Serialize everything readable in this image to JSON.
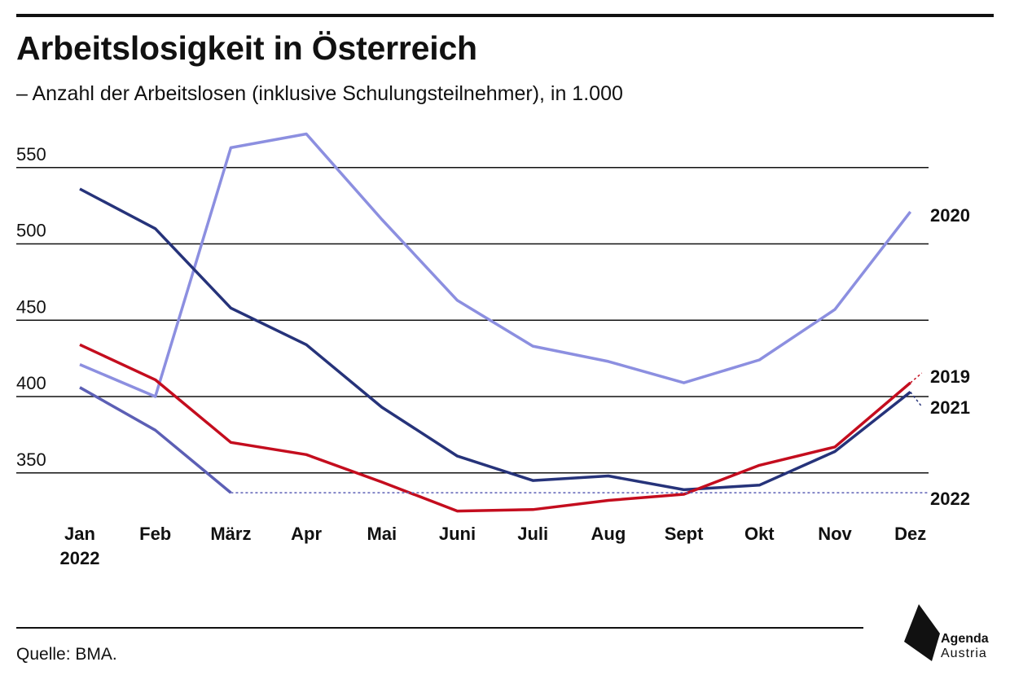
{
  "header": {
    "title": "Arbeitslosigkeit in Österreich",
    "subtitle": "– Anzahl der Arbeitslosen (inklusive Schulungsteilnehmer), in 1.000"
  },
  "footer": {
    "source": "Quelle: BMA.",
    "logo_line1": "Agenda",
    "logo_line2": "Austria"
  },
  "colors": {
    "2019": "#c40d1e",
    "2020": "#8c8fe0",
    "2021": "#26337a",
    "2022": "#5c5fb5"
  },
  "chart_data": {
    "type": "line",
    "categories": [
      "Jan",
      "Feb",
      "März",
      "Apr",
      "Mai",
      "Juni",
      "Juli",
      "Aug",
      "Sept",
      "Okt",
      "Nov",
      "Dez"
    ],
    "first_category_sublabel": "2022",
    "y_ticks": [
      350,
      400,
      450,
      500,
      550
    ],
    "ylim": [
      320,
      580
    ],
    "grid": true,
    "series": [
      {
        "name": "2020",
        "values": [
          421,
          400,
          563,
          572,
          516,
          463,
          433,
          423,
          409,
          424,
          457,
          521
        ]
      },
      {
        "name": "2021",
        "values": [
          536,
          510,
          458,
          434,
          393,
          361,
          345,
          348,
          339,
          342,
          364,
          403
        ]
      },
      {
        "name": "2019",
        "values": [
          434,
          411,
          370,
          362,
          344,
          325,
          326,
          332,
          336,
          355,
          367,
          409
        ]
      },
      {
        "name": "2022",
        "values": [
          406,
          378,
          337,
          null,
          null,
          null,
          null,
          null,
          null,
          null,
          null,
          null
        ],
        "reference_line": 337
      }
    ]
  }
}
